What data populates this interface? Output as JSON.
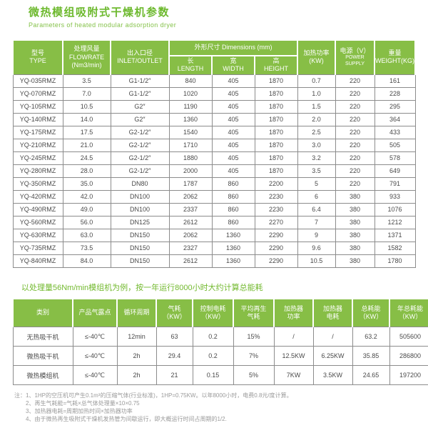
{
  "header": {
    "title": "微热模组吸附式干燥机参数",
    "subtitle": "Parameters of heated modular adsorption dryer"
  },
  "colors": {
    "header_green": "#87BE46",
    "title_green": "#6DB92E",
    "section_title_green": "#72B92E",
    "border_gray": "#8C8C8C",
    "body_text": "#4A4A4A",
    "note_gray": "#9A9A9A"
  },
  "table1": {
    "headers": {
      "type": "型号\nTYPE",
      "flowrate": "处理风量\nFLOWRATE\n(Nm3/min)",
      "inlet_outlet": "出入口径\nINLET/OUTLET",
      "dimensions": "外形尺寸 Dimensions (mm)",
      "length": "长\nLENGTH",
      "width": "宽\nWIDTH",
      "height": "高\nHEIGHT",
      "heating_power": "加热功率\n(KW)",
      "power_supply_cn": "电源（V）",
      "power_supply_en": "POWER SUPPLY",
      "weight": "重量\nWEIGHT(KG)"
    },
    "rows": [
      [
        "YQ-035RMZ",
        "3.5",
        "G1-1/2″",
        "840",
        "405",
        "1870",
        "0.7",
        "220",
        "161"
      ],
      [
        "YQ-070RMZ",
        "7.0",
        "G1-1/2″",
        "1020",
        "405",
        "1870",
        "1.0",
        "220",
        "228"
      ],
      [
        "YQ-105RMZ",
        "10.5",
        "G2″",
        "1190",
        "405",
        "1870",
        "1.5",
        "220",
        "295"
      ],
      [
        "YQ-140RMZ",
        "14.0",
        "G2″",
        "1360",
        "405",
        "1870",
        "2.0",
        "220",
        "364"
      ],
      [
        "YQ-175RMZ",
        "17.5",
        "G2-1/2″",
        "1540",
        "405",
        "1870",
        "2.5",
        "220",
        "433"
      ],
      [
        "YQ-210RMZ",
        "21.0",
        "G2-1/2″",
        "1710",
        "405",
        "1870",
        "3.0",
        "220",
        "505"
      ],
      [
        "YQ-245RMZ",
        "24.5",
        "G2-1/2″",
        "1880",
        "405",
        "1870",
        "3.2",
        "220",
        "578"
      ],
      [
        "YQ-280RMZ",
        "28.0",
        "G2-1/2″",
        "2000",
        "405",
        "1870",
        "3.5",
        "220",
        "649"
      ],
      [
        "YQ-350RMZ",
        "35.0",
        "DN80",
        "1787",
        "860",
        "2200",
        "5",
        "220",
        "791"
      ],
      [
        "YQ-420RMZ",
        "42.0",
        "DN100",
        "2062",
        "860",
        "2230",
        "6",
        "380",
        "933"
      ],
      [
        "YQ-490RMZ",
        "49.0",
        "DN100",
        "2337",
        "860",
        "2230",
        "6.4",
        "380",
        "1076"
      ],
      [
        "YQ-560RMZ",
        "56.0",
        "DN125",
        "2612",
        "860",
        "2270",
        "7",
        "380",
        "1212"
      ],
      [
        "YQ-630RMZ",
        "63.0",
        "DN150",
        "2062",
        "1360",
        "2290",
        "9",
        "380",
        "1371"
      ],
      [
        "YQ-735RMZ",
        "73.5",
        "DN150",
        "2327",
        "1360",
        "2290",
        "9.6",
        "380",
        "1582"
      ],
      [
        "YQ-840RMZ",
        "84.0",
        "DN150",
        "2612",
        "1360",
        "2290",
        "10.5",
        "380",
        "1780"
      ]
    ]
  },
  "section2": {
    "title": "以处理量56Nm/min模组机为例，按一年运行8000小时大约计算总能耗"
  },
  "table2": {
    "headers": [
      "类别",
      "产品气露点",
      "循环周期",
      "气耗\n（KW）",
      "控制电耗\n（KW）",
      "平均再生\n气耗",
      "加热器\n功率",
      "加热器\n电耗",
      "总耗能\n（KW）",
      "年总耗能\n（KW）"
    ],
    "rows": [
      [
        "无热吸干机",
        "≤-40℃",
        "12min",
        "63",
        "0.2",
        "15%",
        "/",
        "/",
        "63.2",
        "505600"
      ],
      [
        "微热吸干机",
        "≤-40℃",
        "2h",
        "29.4",
        "0.2",
        "7%",
        "12.5KW",
        "6.25KW",
        "35.85",
        "286800"
      ],
      [
        "微热模组机",
        "≤-40℃",
        "2h",
        "21",
        "0.15",
        "5%",
        "7KW",
        "3.5KW",
        "24.65",
        "197200"
      ]
    ]
  },
  "notes": {
    "prefix": "注：",
    "items": [
      "1、1HP的空压机可产生0.1m³的压缩气体(行业标准)，1HP=0.75KW。以年8000小时，电费0.8元/度计算。",
      "2、再生气耗能=气耗×总气体处理量×10×0.75",
      "3、加热器电耗=周期加热时间×加热器功率",
      "4、由于微热再生吸附式干燥机发热管为间歇运行，即大概运行时间占周期的1/2."
    ]
  }
}
